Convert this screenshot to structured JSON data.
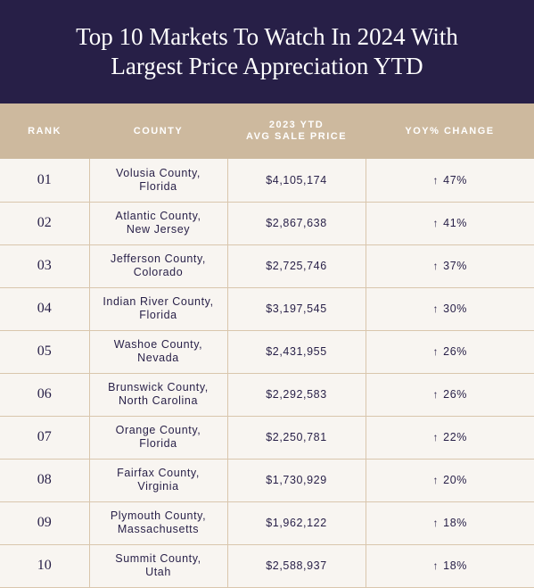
{
  "title_lines": [
    "Top 10 Markets To Watch In 2024 With",
    "Largest Price Appreciation YTD"
  ],
  "columns": {
    "rank": "RANK",
    "county": "COUNTY",
    "price": [
      "2023 YTD",
      "AVG SALE PRICE"
    ],
    "change": "YOY% CHANGE"
  },
  "colors": {
    "header_bg": "#271f47",
    "table_head_bg": "#cdb99e",
    "row_bg": "#f8f5f1",
    "text": "#271f47",
    "border": "#d9c6ad"
  },
  "chart_data": {
    "type": "table",
    "title": "Top 10 Markets To Watch In 2024 With Largest Price Appreciation YTD",
    "rows": [
      {
        "rank": "01",
        "county": [
          "Volusia County,",
          "Florida"
        ],
        "price": "$4,105,174",
        "change": "47%"
      },
      {
        "rank": "02",
        "county": [
          "Atlantic County,",
          "New Jersey"
        ],
        "price": "$2,867,638",
        "change": "41%"
      },
      {
        "rank": "03",
        "county": [
          "Jefferson County,",
          "Colorado"
        ],
        "price": "$2,725,746",
        "change": "37%"
      },
      {
        "rank": "04",
        "county": [
          "Indian River County,",
          "Florida"
        ],
        "price": "$3,197,545",
        "change": "30%"
      },
      {
        "rank": "05",
        "county": [
          "Washoe County,",
          "Nevada"
        ],
        "price": "$2,431,955",
        "change": "26%"
      },
      {
        "rank": "06",
        "county": [
          "Brunswick County,",
          "North Carolina"
        ],
        "price": "$2,292,583",
        "change": "26%"
      },
      {
        "rank": "07",
        "county": [
          "Orange County,",
          "Florida"
        ],
        "price": "$2,250,781",
        "change": "22%"
      },
      {
        "rank": "08",
        "county": [
          "Fairfax County,",
          "Virginia"
        ],
        "price": "$1,730,929",
        "change": "20%"
      },
      {
        "rank": "09",
        "county": [
          "Plymouth County,",
          "Massachusetts"
        ],
        "price": "$1,962,122",
        "change": "18%"
      },
      {
        "rank": "10",
        "county": [
          "Summit County,",
          "Utah"
        ],
        "price": "$2,588,937",
        "change": "18%"
      }
    ]
  }
}
